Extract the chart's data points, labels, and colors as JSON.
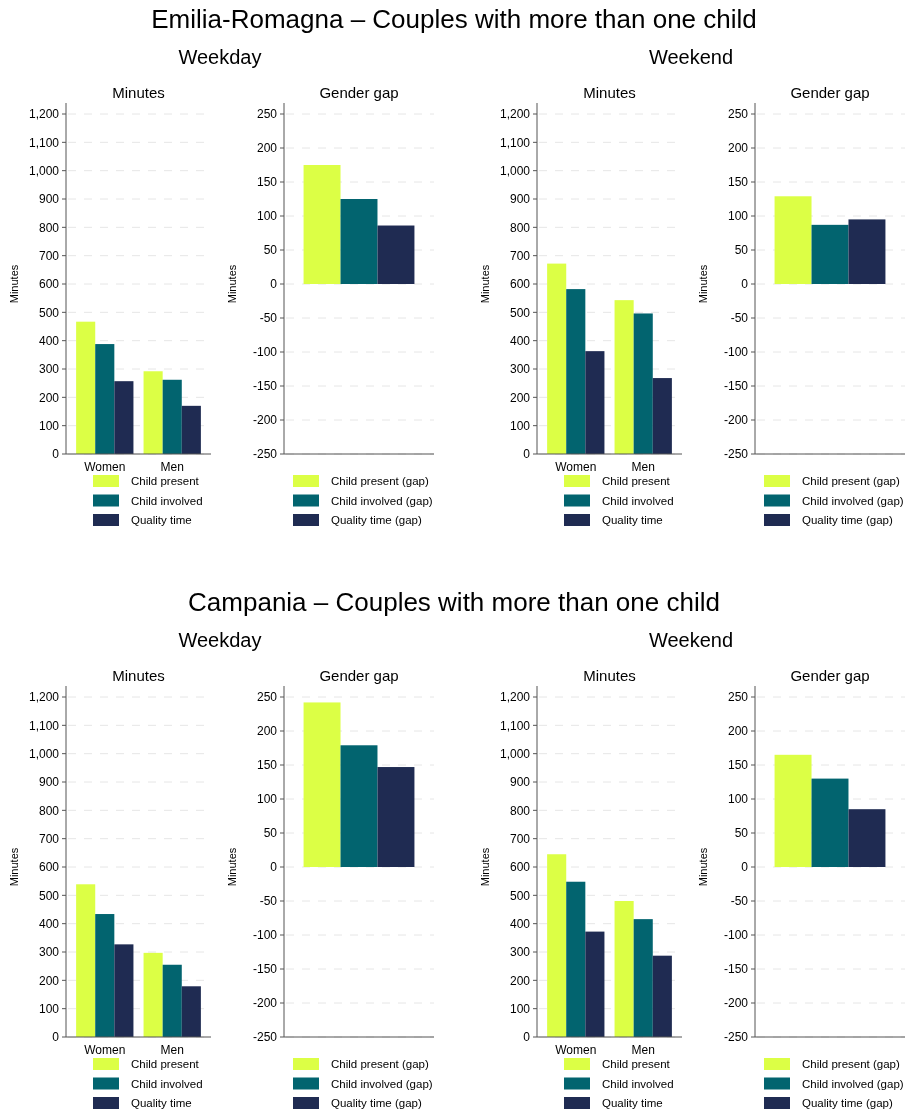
{
  "chart_data": [
    {
      "type": "bar",
      "title": "Minutes",
      "ylabel": "Minutes",
      "annotations": [
        "Emilia-Romagna – Couples with more than one child",
        "Weekday"
      ],
      "categories": [
        "Women",
        "Men"
      ],
      "series": [
        {
          "name": "Child present",
          "color": "#dcff45",
          "values": [
            467,
            292
          ]
        },
        {
          "name": "Child involved",
          "color": "#02646f",
          "values": [
            388,
            262
          ]
        },
        {
          "name": "Quality time",
          "color": "#1f2b52",
          "values": [
            257,
            170
          ]
        }
      ],
      "ylim": [
        0,
        1200
      ],
      "yticks": [
        0,
        100,
        200,
        300,
        400,
        500,
        600,
        700,
        800,
        900,
        {
          "value": 1000,
          "label": "1,000"
        },
        {
          "value": 1100,
          "label": "1,100"
        },
        {
          "value": 1200,
          "label": "1,200"
        }
      ],
      "grid": "y",
      "legend": "bottom"
    },
    {
      "type": "bar",
      "title": "Gender gap",
      "ylabel": "Minutes",
      "categories": [
        null
      ],
      "series": [
        {
          "name": "Child present (gap)",
          "color": "#dcff45",
          "values": [
            175
          ]
        },
        {
          "name": "Child involved (gap)",
          "color": "#02646f",
          "values": [
            125
          ]
        },
        {
          "name": "Quality time (gap)",
          "color": "#1f2b52",
          "values": [
            86
          ]
        }
      ],
      "ylim": [
        -250,
        250
      ],
      "yticks": [
        -250,
        -200,
        -150,
        -100,
        -50,
        0,
        50,
        100,
        150,
        200,
        250
      ],
      "grid": "y",
      "legend": "bottom"
    },
    {
      "type": "bar",
      "title": "Minutes",
      "ylabel": "Minutes",
      "annotations": [
        "Weekend"
      ],
      "categories": [
        "Women",
        "Men"
      ],
      "series": [
        {
          "name": "Child present",
          "color": "#dcff45",
          "values": [
            672,
            543
          ]
        },
        {
          "name": "Child involved",
          "color": "#02646f",
          "values": [
            582,
            496
          ]
        },
        {
          "name": "Quality time",
          "color": "#1f2b52",
          "values": [
            363,
            268
          ]
        }
      ],
      "ylim": [
        0,
        1200
      ],
      "yticks": [
        0,
        100,
        200,
        300,
        400,
        500,
        600,
        700,
        800,
        900,
        {
          "value": 1000,
          "label": "1,000"
        },
        {
          "value": 1100,
          "label": "1,100"
        },
        {
          "value": 1200,
          "label": "1,200"
        }
      ],
      "grid": "y",
      "legend": "bottom"
    },
    {
      "type": "bar",
      "title": "Gender gap",
      "ylabel": "Minutes",
      "categories": [
        null
      ],
      "series": [
        {
          "name": "Child present (gap)",
          "color": "#dcff45",
          "values": [
            129
          ]
        },
        {
          "name": "Child involved (gap)",
          "color": "#02646f",
          "values": [
            87
          ]
        },
        {
          "name": "Quality time (gap)",
          "color": "#1f2b52",
          "values": [
            95
          ]
        }
      ],
      "ylim": [
        -250,
        250
      ],
      "yticks": [
        -250,
        -200,
        -150,
        -100,
        -50,
        0,
        50,
        100,
        150,
        200,
        250
      ],
      "grid": "y",
      "legend": "bottom"
    },
    {
      "type": "bar",
      "title": "Minutes",
      "ylabel": "Minutes",
      "annotations": [
        "Campania – Couples with more than one child",
        "Weekday"
      ],
      "categories": [
        "Women",
        "Men"
      ],
      "series": [
        {
          "name": "Child present",
          "color": "#dcff45",
          "values": [
            539,
            297
          ]
        },
        {
          "name": "Child involved",
          "color": "#02646f",
          "values": [
            434,
            255
          ]
        },
        {
          "name": "Quality time",
          "color": "#1f2b52",
          "values": [
            327,
            179
          ]
        }
      ],
      "ylim": [
        0,
        1200
      ],
      "yticks": [
        0,
        100,
        200,
        300,
        400,
        500,
        600,
        700,
        800,
        900,
        {
          "value": 1000,
          "label": "1,000"
        },
        {
          "value": 1100,
          "label": "1,100"
        },
        {
          "value": 1200,
          "label": "1,200"
        }
      ],
      "grid": "y",
      "legend": "bottom"
    },
    {
      "type": "bar",
      "title": "Gender gap",
      "ylabel": "Minutes",
      "categories": [
        null
      ],
      "series": [
        {
          "name": "Child present (gap)",
          "color": "#dcff45",
          "values": [
            242
          ]
        },
        {
          "name": "Child involved (gap)",
          "color": "#02646f",
          "values": [
            179
          ]
        },
        {
          "name": "Quality time (gap)",
          "color": "#1f2b52",
          "values": [
            147
          ]
        }
      ],
      "ylim": [
        -250,
        250
      ],
      "yticks": [
        -250,
        -200,
        -150,
        -100,
        -50,
        0,
        50,
        100,
        150,
        200,
        250
      ],
      "grid": "y",
      "legend": "bottom"
    },
    {
      "type": "bar",
      "title": "Minutes",
      "ylabel": "Minutes",
      "annotations": [
        "Weekend"
      ],
      "categories": [
        "Women",
        "Men"
      ],
      "series": [
        {
          "name": "Child present",
          "color": "#dcff45",
          "values": [
            645,
            480
          ]
        },
        {
          "name": "Child involved",
          "color": "#02646f",
          "values": [
            548,
            416
          ]
        },
        {
          "name": "Quality time",
          "color": "#1f2b52",
          "values": [
            372,
            287
          ]
        }
      ],
      "ylim": [
        0,
        1200
      ],
      "yticks": [
        0,
        100,
        200,
        300,
        400,
        500,
        600,
        700,
        800,
        900,
        {
          "value": 1000,
          "label": "1,000"
        },
        {
          "value": 1100,
          "label": "1,100"
        },
        {
          "value": 1200,
          "label": "1,200"
        }
      ],
      "grid": "y",
      "legend": "bottom"
    },
    {
      "type": "bar",
      "title": "Gender gap",
      "ylabel": "Minutes",
      "categories": [
        null
      ],
      "series": [
        {
          "name": "Child present (gap)",
          "color": "#dcff45",
          "values": [
            165
          ]
        },
        {
          "name": "Child involved (gap)",
          "color": "#02646f",
          "values": [
            130
          ]
        },
        {
          "name": "Quality time (gap)",
          "color": "#1f2b52",
          "values": [
            85
          ]
        }
      ],
      "ylim": [
        -250,
        250
      ],
      "yticks": [
        -250,
        -200,
        -150,
        -100,
        -50,
        0,
        50,
        100,
        150,
        200,
        250
      ],
      "grid": "y",
      "legend": "bottom"
    }
  ]
}
